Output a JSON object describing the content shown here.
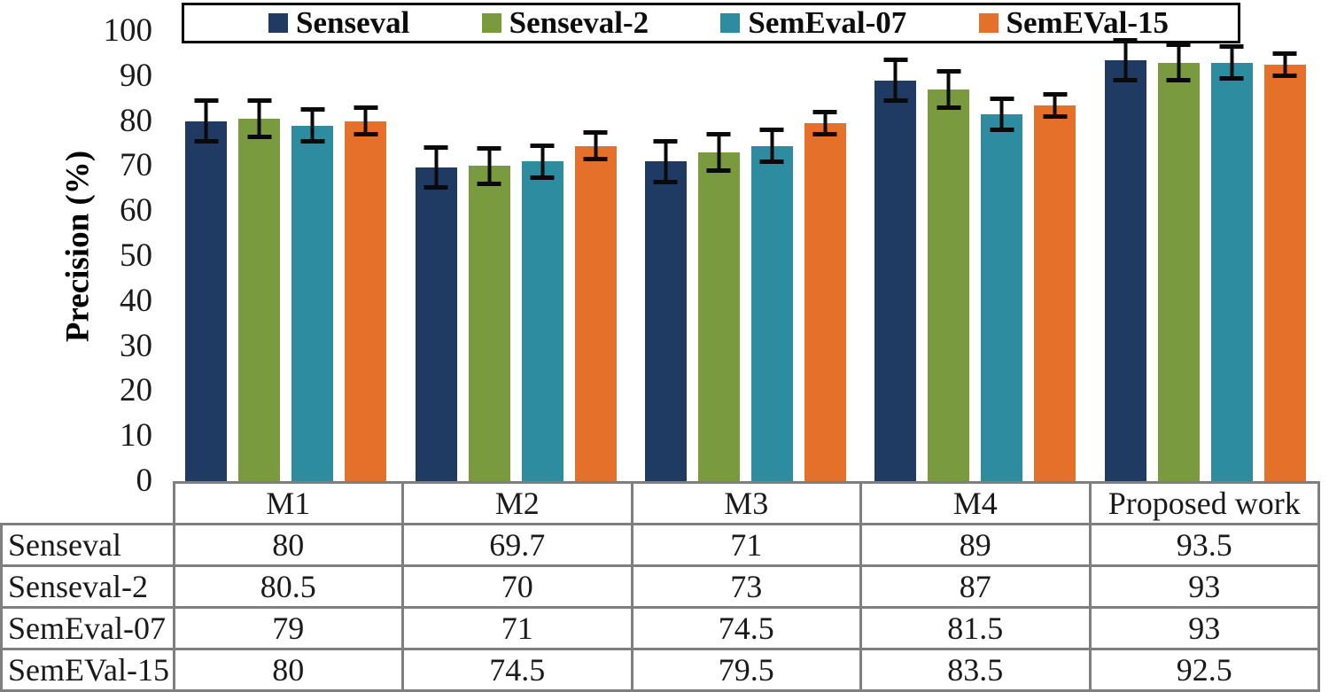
{
  "chart_data": {
    "type": "bar",
    "title": "",
    "xlabel": "",
    "ylabel": "Precision (%)",
    "ylim": [
      0,
      100
    ],
    "yticks": [
      0,
      10,
      20,
      30,
      40,
      50,
      60,
      70,
      80,
      90,
      100
    ],
    "grid": false,
    "legend_position": "top",
    "error_bars": true,
    "categories": [
      "M1",
      "M2",
      "M3",
      "M4",
      "Proposed work"
    ],
    "series": [
      {
        "name": "Senseval",
        "color": "#1F3B63",
        "values": [
          80,
          69.7,
          71,
          89,
          93.5
        ],
        "errors": [
          5,
          5,
          5,
          5,
          5
        ]
      },
      {
        "name": "Senseval-2",
        "color": "#7A9A3E",
        "values": [
          80.5,
          70,
          73,
          87,
          93
        ],
        "errors": [
          4.5,
          4.5,
          4.5,
          4.5,
          4.5
        ]
      },
      {
        "name": "SemEval-07",
        "color": "#2E8CA1",
        "values": [
          79,
          71,
          74.5,
          81.5,
          93
        ],
        "errors": [
          4,
          4,
          4,
          4,
          4
        ]
      },
      {
        "name": "SemEVal-15",
        "color": "#E5702A",
        "values": [
          80,
          74.5,
          79.5,
          83.5,
          92.5
        ],
        "errors": [
          3.5,
          3.5,
          3,
          3,
          3
        ]
      }
    ]
  },
  "table": {
    "header": [
      "M1",
      "M2",
      "M3",
      "M4",
      "Proposed work"
    ],
    "rows": [
      {
        "label": "Senseval",
        "values": [
          "80",
          "69.7",
          "71",
          "89",
          "93.5"
        ]
      },
      {
        "label": "Senseval-2",
        "values": [
          "80.5",
          "70",
          "73",
          "87",
          "93"
        ]
      },
      {
        "label": "SemEval-07",
        "values": [
          "79",
          "71",
          "74.5",
          "81.5",
          "93"
        ]
      },
      {
        "label": "SemEVal-15",
        "values": [
          "80",
          "74.5",
          "79.5",
          "83.5",
          "92.5"
        ]
      }
    ]
  },
  "colors": {
    "table_border": "#7f7f7f",
    "legend_border": "#000000",
    "error_bar": "#0a0a0a",
    "background": "#ffffff"
  }
}
